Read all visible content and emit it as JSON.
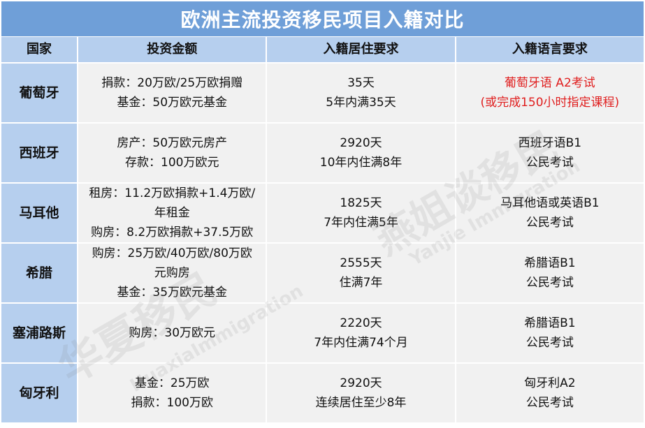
{
  "title": "欧洲主流投资移民项目入籍对比",
  "headers": [
    "国家",
    "投资金额",
    "入籍居住要求",
    "入籍语言要求"
  ],
  "rows": [
    {
      "country": "葡萄牙",
      "investment": [
        "捐款：20万欧/25万欧捐赠",
        "基金：50万欧元基金"
      ],
      "residence": [
        "35天",
        "5年内满35天"
      ],
      "language": [
        "葡萄牙语 A2考试",
        "(或完成150小时指定课程)"
      ],
      "language_color": "#e01e1e"
    },
    {
      "country": "西班牙",
      "investment": [
        "房产：50万欧元房产",
        "存款：100万欧元"
      ],
      "residence": [
        "2920天",
        "10年内住满8年"
      ],
      "language": [
        "西班牙语B1",
        "公民考试"
      ]
    },
    {
      "country": "马耳他",
      "investment": [
        "租房：11.2万欧捐款+1.4万欧/",
        "年租金",
        "购房：8.2万欧捐款+37.5万欧"
      ],
      "residence": [
        "1825天",
        "7年内住满5年"
      ],
      "language": [
        "马耳他语或英语B1",
        "公民考试"
      ]
    },
    {
      "country": "希腊",
      "investment": [
        "购房：25万欧/40万欧/80万欧",
        "元购房",
        "基金：35万欧元基金"
      ],
      "residence": [
        "2555天",
        "住满7年"
      ],
      "language": [
        "希腊语B1",
        "公民考试"
      ]
    },
    {
      "country": "塞浦路斯",
      "investment": [
        "购房：30万欧元"
      ],
      "residence": [
        "2220天",
        "7年内住满74个月"
      ],
      "language": [
        "希腊语B1",
        "公民考试"
      ]
    },
    {
      "country": "匈牙利",
      "investment": [
        "基金：25万欧",
        "捐款：100万欧"
      ],
      "residence": [
        "2920天",
        "连续居住至少8年"
      ],
      "language": [
        "匈牙利A2",
        "公民考试"
      ]
    }
  ],
  "watermarks": [
    "华夏移民",
    "HuaxiaImmigration",
    "燕姐谈移民",
    "Yanjie Immigration"
  ],
  "colors": {
    "title_bg": "#6f9fd8",
    "header_bg": "#b6cfee",
    "cell_bg": "#f1f1f1",
    "highlight": "#e01e1e"
  }
}
